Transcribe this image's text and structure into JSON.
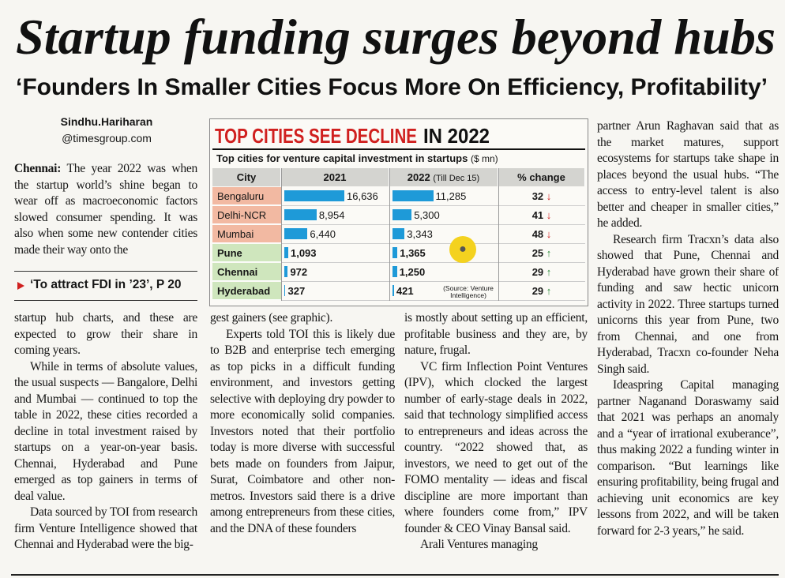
{
  "headline": "Startup funding surges beyond hubs",
  "subheadline": "‘Founders In Smaller Cities Focus More On Efficiency, Profitability’",
  "byline": {
    "name": "Sindhu.Hariharan",
    "email": "@timesgroup.com"
  },
  "dateline": "Chennai:",
  "pointer": "‘To attract FDI in ’23’, P 20",
  "columns": [
    [
      "The year 2022 was when the startup world’s shine began to wear off as macroeconomic factors slowed consumer spending. It was also when some new contender cities made their way onto the"
    ],
    [
      "startup hub charts, and these are expected to grow their share in coming years.",
      "While in terms of absolute values, the usual suspects — Bangalore, Delhi and Mumbai — continued to top the table in 2022, these cities recorded a decline in total investment raised by startups on a year-on-year basis. Chennai, Hyderabad and Pune emerged as top gainers in terms of deal value.",
      "Data sourced by TOI from research firm Venture Intelligence showed that Chennai and Hyderabad were the big-"
    ],
    [
      "gest gainers (see graphic).",
      "Experts told TOI this is likely due to B2B and enterprise tech emerging as top picks in a difficult funding environment, and investors getting selective with deploying dry powder to more economically solid companies. Investors noted that their portfolio today is more diverse with successful bets made on founders from Jaipur, Surat, Coimbatore and other non-metros. Investors said there is a drive among entrepreneurs from these cities, and the DNA of these founders"
    ],
    [
      "is mostly about setting up an efficient, profitable business and they are, by nature, frugal.",
      "VC firm Inflection Point Ventures (IPV), which clocked the largest number of early-stage deals in 2022, said that technology simplified access to entrepreneurs and ideas across the country. “2022 showed that, as investors, we need to get out of the FOMO mentality — ideas and fiscal discipline are more important than where founders come from,” IPV founder & CEO Vinay Bansal said.",
      "Arali Ventures managing"
    ],
    [
      "partner Arun Raghavan said that as the market matures, support ecosystems for startups take shape in places beyond the usual hubs. “The access to entry-level talent is also better and cheaper in smaller cities,” he added.",
      "Research firm Tracxn’s data also showed that Pune, Chennai and Hyderabad have grown their share of funding and saw hectic unicorn activity in 2022. Three startups turned unicorns this year from Pune, two from Chennai, and one from Hyderabad, Tracxn co-founder Neha Singh said.",
      "Ideaspring Capital managing partner Naganand Doraswamy said that 2021 was perhaps an anomaly and a “year of irrational exuberance”, thus making 2022 a funding winter in comparison. “But learnings like ensuring profitability, being frugal and achieving unit economics are key lessons from 2022, and will be taken forward for 2-3 years,” he said."
    ]
  ],
  "graphic": {
    "title_highlight": "TOP CITIES SEE DECLINE",
    "title_rest": "IN 2022",
    "subtitle": "Top cities for venture capital investment in startups",
    "unit": "($ mn)",
    "headers": [
      "City",
      "2021",
      "2022",
      "% change"
    ],
    "header_note": "(Till Dec 15)",
    "bar_color": "#1e9ad8",
    "rows": [
      {
        "city": "Bengaluru",
        "values": [
          16636,
          11285
        ],
        "value_labels": [
          "16,636",
          "11,285"
        ],
        "change": "32",
        "arrow": "↓"
      },
      {
        "city": "Delhi-NCR",
        "values": [
          8954,
          5300
        ],
        "value_labels": [
          "8,954",
          "5,300"
        ],
        "change": "41",
        "arrow": "↓"
      },
      {
        "city": "Mumbai",
        "values": [
          6440,
          3343
        ],
        "value_labels": [
          "6,440",
          "3,343"
        ],
        "change": "48",
        "arrow": "↓"
      },
      {
        "city": "Pune",
        "values": [
          1093,
          1365
        ],
        "value_labels": [
          "1,093",
          "1,365"
        ],
        "change": "25",
        "arrow": "↑"
      },
      {
        "city": "Chennai",
        "values": [
          972,
          1250
        ],
        "value_labels": [
          "972",
          "1,250"
        ],
        "change": "29",
        "arrow": "↑"
      },
      {
        "city": "Hyderabad",
        "values": [
          327,
          421
        ],
        "value_labels": [
          "327",
          "421"
        ],
        "change": "29",
        "arrow": "↑"
      }
    ],
    "source": "(Source: Venture Intelligence)"
  }
}
